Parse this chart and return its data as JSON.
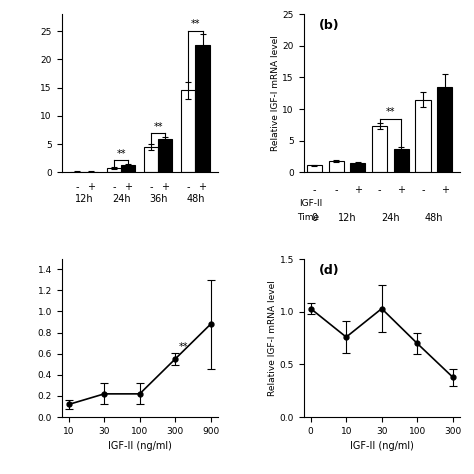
{
  "panel_a": {
    "groups": [
      "12h",
      "24h",
      "36h",
      "48h"
    ],
    "white_vals": [
      0.08,
      0.7,
      4.5,
      14.5
    ],
    "white_err": [
      0.05,
      0.15,
      0.5,
      1.5
    ],
    "black_vals": [
      0.08,
      1.3,
      5.8,
      22.5
    ],
    "black_err": [
      0.05,
      0.2,
      0.5,
      2.0
    ],
    "ylim": [
      0,
      28
    ],
    "yticks": [
      0,
      5,
      10,
      15,
      20,
      25
    ]
  },
  "panel_b": {
    "vals": [
      1.1,
      1.8,
      1.4,
      7.3,
      3.7,
      11.5,
      13.5
    ],
    "errs": [
      0.12,
      0.2,
      0.15,
      0.5,
      0.35,
      1.2,
      2.0
    ],
    "colors": [
      "white",
      "white",
      "black",
      "white",
      "black",
      "white",
      "black"
    ],
    "ylabel": "Relative IGF-I mRNA level",
    "label": "(b)",
    "ylim": [
      0,
      25
    ],
    "yticks": [
      0,
      5,
      10,
      15,
      20,
      25
    ]
  },
  "panel_c": {
    "x": [
      10,
      30,
      100,
      300,
      900
    ],
    "y": [
      0.12,
      0.22,
      0.22,
      0.55,
      0.88
    ],
    "yerr": [
      0.04,
      0.1,
      0.1,
      0.06,
      0.42
    ],
    "xlabel": "IGF-II (ng/ml)",
    "sig_label": "**"
  },
  "panel_d": {
    "x": [
      0,
      10,
      30,
      100,
      300
    ],
    "y": [
      1.03,
      0.76,
      1.03,
      0.7,
      0.38
    ],
    "yerr": [
      0.05,
      0.15,
      0.22,
      0.1,
      0.08
    ],
    "xlabel": "IGF-II (ng/ml)",
    "ylabel": "Relative IGF-I mRNA level",
    "label": "(d)",
    "ylim": [
      0.0,
      1.5
    ],
    "yticks": [
      0.0,
      0.5,
      1.0,
      1.5
    ]
  }
}
